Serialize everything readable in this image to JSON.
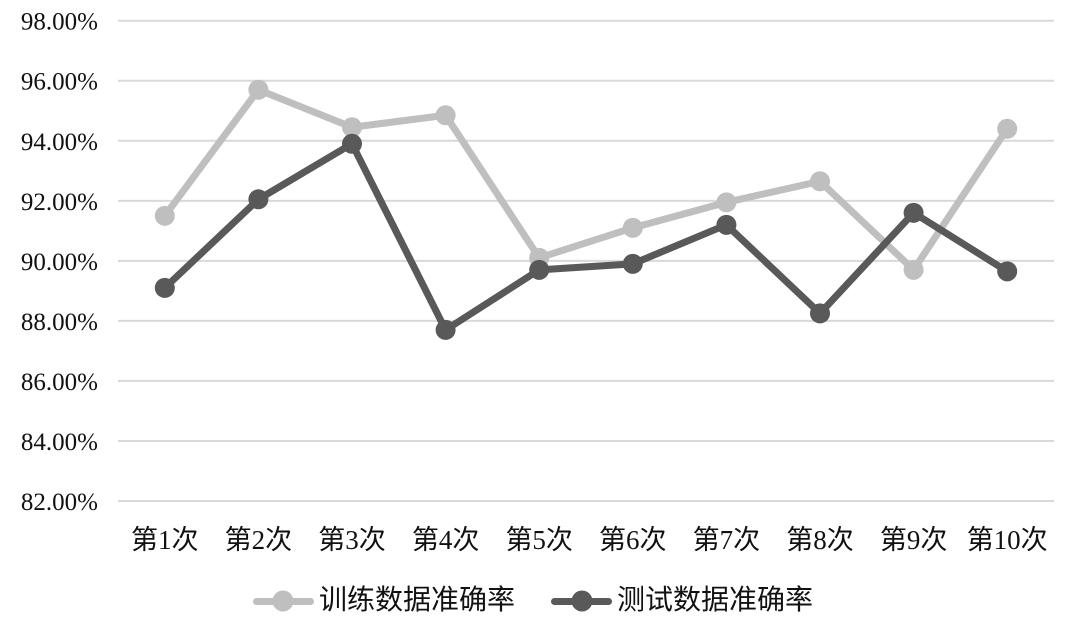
{
  "chart_data": {
    "type": "line",
    "title": "",
    "xlabel": "",
    "ylabel": "",
    "categories": [
      "第1次",
      "第2次",
      "第3次",
      "第4次",
      "第5次",
      "第6次",
      "第7次",
      "第8次",
      "第9次",
      "第10次"
    ],
    "series": [
      {
        "name": "训练数据准确率",
        "color": "#bfbfbf",
        "values": [
          91.5,
          95.7,
          94.45,
          94.85,
          90.1,
          91.1,
          91.95,
          92.65,
          89.7,
          94.4
        ]
      },
      {
        "name": "测试数据准确率",
        "color": "#595959",
        "values": [
          89.1,
          92.05,
          93.9,
          87.7,
          89.7,
          89.9,
          91.2,
          88.25,
          91.6,
          89.65
        ]
      }
    ],
    "y_axis": {
      "min": 82,
      "max": 98,
      "step": 2,
      "tick_labels": [
        "82.00%",
        "84.00%",
        "86.00%",
        "88.00%",
        "90.00%",
        "92.00%",
        "94.00%",
        "96.00%",
        "98.00%"
      ]
    },
    "grid": "horizontal",
    "legend_position": "bottom",
    "gridline_color": "#d9d9d9",
    "text_color": "#111111",
    "background": "#ffffff",
    "marker": "circle"
  }
}
